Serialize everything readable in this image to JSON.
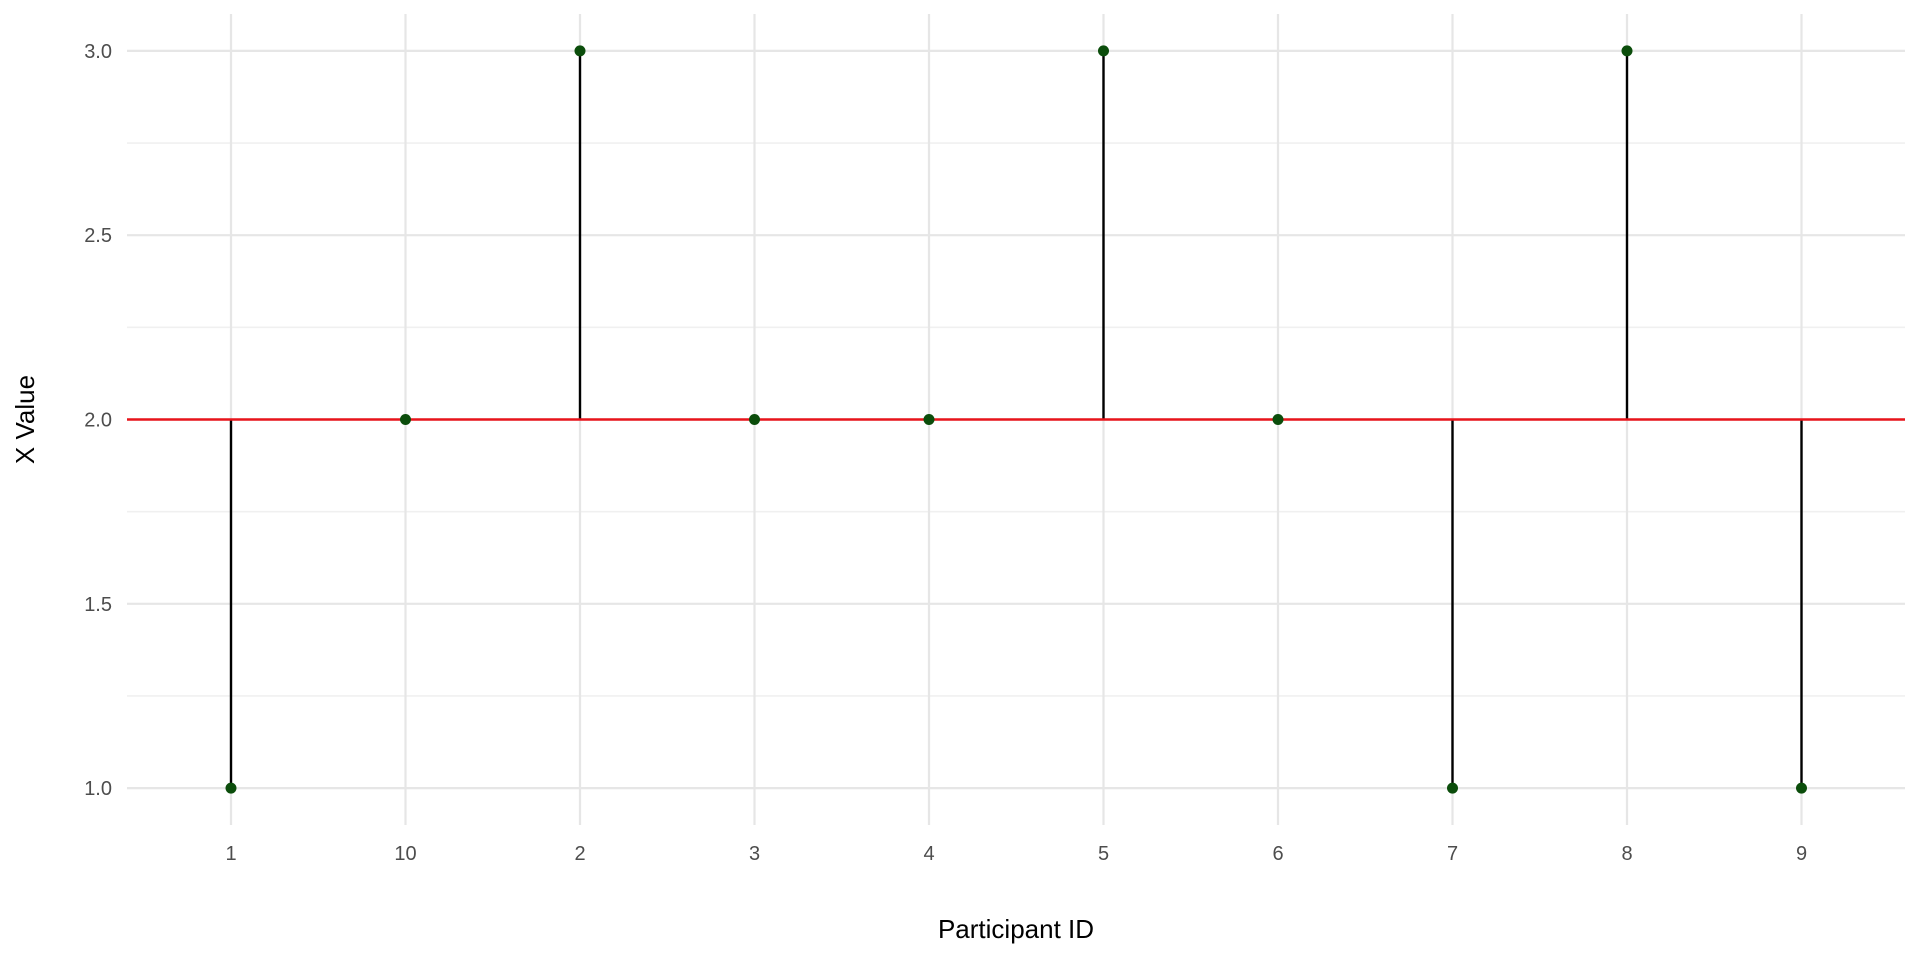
{
  "chart_data": {
    "type": "lollipop",
    "title": "",
    "xlabel": "Participant ID",
    "ylabel": "X Value",
    "categories": [
      "1",
      "10",
      "2",
      "3",
      "4",
      "5",
      "6",
      "7",
      "8",
      "9"
    ],
    "values": [
      1,
      2,
      3,
      2,
      2,
      3,
      2,
      1,
      3,
      1
    ],
    "baseline": 2.0,
    "ylim": [
      0.9,
      3.1
    ],
    "y_ticks": [
      1.0,
      1.5,
      2.0,
      2.5,
      3.0
    ],
    "y_tick_labels": [
      "1.0",
      "1.5",
      "2.0",
      "2.5",
      "3.0"
    ],
    "grid": true,
    "legend": "none",
    "colors": {
      "point": "#0b4d0b",
      "stem": "#000000",
      "baseline": "#e8141b",
      "grid_major": "#e6e6e6",
      "grid_minor": "#f0f0f0"
    }
  }
}
